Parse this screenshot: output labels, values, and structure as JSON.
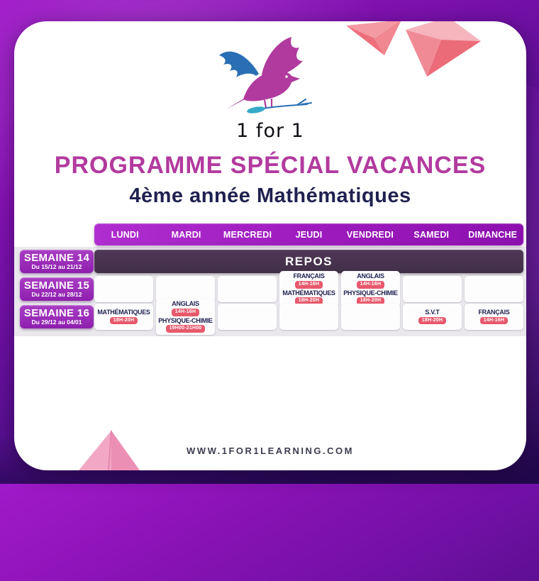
{
  "logo": {
    "brand": "1 for 1"
  },
  "title": "PROGRAMME SPÉCIAL VACANCES",
  "subtitle": "4ème année Mathématiques",
  "table": {
    "days": [
      "LUNDI",
      "MARDI",
      "MERCREDI",
      "JEUDI",
      "VENDREDI",
      "SAMEDI",
      "DIMANCHE"
    ],
    "weeks": [
      {
        "label": "SEMAINE 14",
        "dates": "Du 15/12 au 21/12",
        "repos_label": "REPOS",
        "cells": null
      },
      {
        "label": "SEMAINE 15",
        "dates": "Du 22/12 au 28/12",
        "cells": [
          [],
          [],
          [],
          [
            {
              "subject": "FRANÇAIS",
              "time": "14H-16H"
            },
            {
              "subject": "MATHÉMATIQUES",
              "time": "18H-20H"
            }
          ],
          [
            {
              "subject": "ANGLAIS",
              "time": "14H-16H"
            },
            {
              "subject": "PHYSIQUE-CHIMIE",
              "time": "18H-20H"
            }
          ],
          [],
          []
        ]
      },
      {
        "label": "SEMAINE 16",
        "dates": "Du 29/12 au 04/01",
        "cells": [
          [
            {
              "subject": "MATHÉMATIQUES",
              "time": "18H-20H"
            }
          ],
          [
            {
              "subject": "ANGLAIS",
              "time": "14H-16H"
            },
            {
              "subject": "PHYSIQUE-CHIMIE",
              "time": "19H00-21H00"
            }
          ],
          [],
          [],
          [],
          [
            {
              "subject": "S.V.T",
              "time": "18H-20H"
            }
          ],
          [
            {
              "subject": "FRANÇAIS",
              "time": "14H-16H"
            }
          ]
        ]
      }
    ]
  },
  "footer": {
    "website": "WWW.1FOR1LEARNING.COM"
  },
  "colors": {
    "title": "#b23a9e",
    "subtitle": "#1f2150",
    "band": "#eae8ed",
    "badge": "#e8596c",
    "header_bar": "#9c1abc",
    "repos_bar": "#46304c",
    "week_label": "#9a2cb4",
    "background_purple": "#7310a6",
    "decor_pink": "#ee6f7c"
  }
}
